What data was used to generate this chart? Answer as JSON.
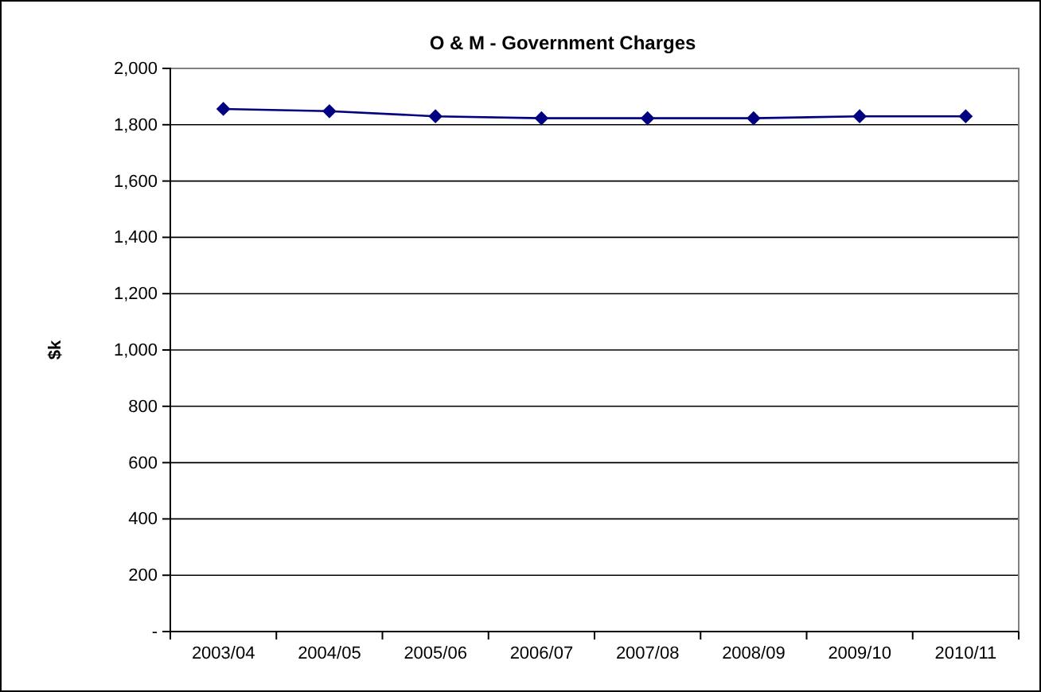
{
  "chart_data": {
    "type": "line",
    "title": "O & M - Government Charges",
    "ylabel": "$k",
    "categories": [
      "2003/04",
      "2004/05",
      "2005/06",
      "2006/07",
      "2007/08",
      "2008/09",
      "2009/10",
      "2010/11"
    ],
    "series": [
      {
        "color": "#000080",
        "values": [
          1856,
          1848,
          1830,
          1823,
          1823,
          1823,
          1830,
          1830
        ]
      }
    ],
    "ylim": [
      0,
      2000
    ],
    "yticks": [
      {
        "value": 0,
        "label": "-"
      },
      {
        "value": 200,
        "label": "200"
      },
      {
        "value": 400,
        "label": "400"
      },
      {
        "value": 600,
        "label": "600"
      },
      {
        "value": 800,
        "label": "800"
      },
      {
        "value": 1000,
        "label": "1,000"
      },
      {
        "value": 1200,
        "label": "1,200"
      },
      {
        "value": 1400,
        "label": "1,400"
      },
      {
        "value": 1600,
        "label": "1,600"
      },
      {
        "value": 1800,
        "label": "1,800"
      },
      {
        "value": 2000,
        "label": "2,000"
      }
    ],
    "grid": "y",
    "marker": "diamond",
    "line_style": "solid"
  }
}
